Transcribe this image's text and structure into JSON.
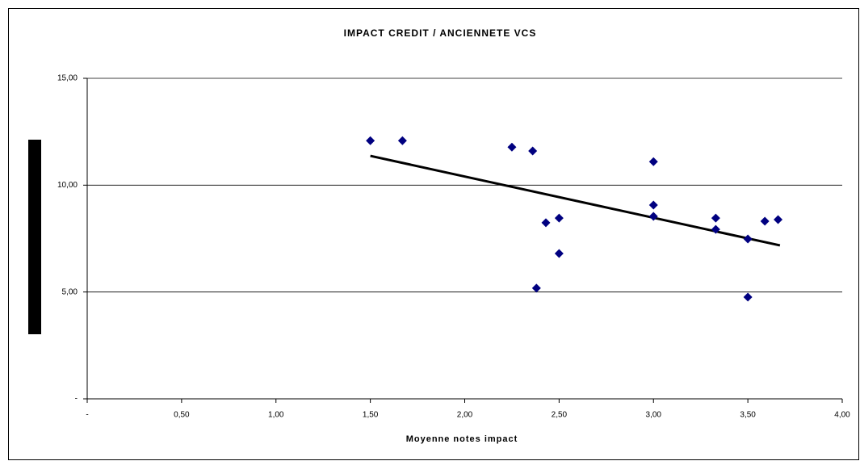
{
  "chart_data": {
    "type": "scatter",
    "title": "IMPACT CREDIT / ANCIENNETE VCS",
    "x_label": "Moyenne notes impact",
    "series": [
      {
        "color": "#000080",
        "x": [
          1.5,
          1.67,
          2.25,
          2.36,
          2.43,
          2.5,
          2.5,
          2.38,
          3.0,
          3.0,
          3.0,
          3.33,
          3.33,
          3.5,
          3.5,
          3.59,
          3.66
        ],
        "values": [
          12.08,
          12.08,
          11.78,
          11.6,
          8.24,
          8.46,
          6.8,
          5.18,
          11.1,
          9.07,
          8.54,
          8.46,
          7.93,
          7.48,
          4.76,
          8.31,
          8.39
        ]
      }
    ],
    "trendline": {
      "color": "#000000",
      "x": [
        1.5,
        3.67
      ],
      "values": [
        11.37,
        7.18
      ]
    },
    "xlim": [
      0,
      4
    ],
    "ylim": [
      0,
      15
    ],
    "xticks": [
      {
        "value": 0,
        "label": "-"
      },
      {
        "value": 0.5,
        "label": "0,50"
      },
      {
        "value": 1,
        "label": "1,00"
      },
      {
        "value": 1.5,
        "label": "1,50"
      },
      {
        "value": 2,
        "label": "2,00"
      },
      {
        "value": 2.5,
        "label": "2,50"
      },
      {
        "value": 3,
        "label": "3,00"
      },
      {
        "value": 3.5,
        "label": "3,50"
      },
      {
        "value": 4,
        "label": "4,00"
      }
    ],
    "yticks": [
      {
        "value": 0,
        "label": "-"
      },
      {
        "value": 5,
        "label": "5,00"
      },
      {
        "value": 10,
        "label": "10,00"
      },
      {
        "value": 15,
        "label": "15,00"
      }
    ],
    "grid": true
  }
}
